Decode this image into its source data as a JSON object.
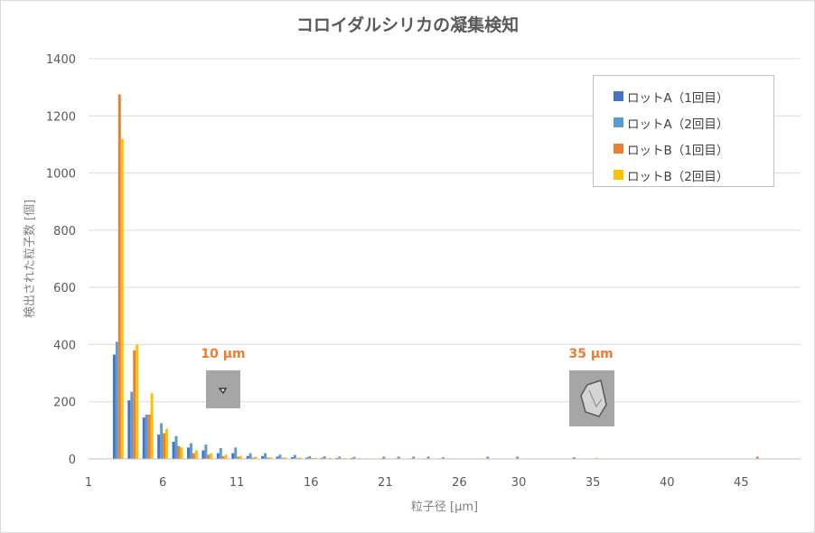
{
  "chart_data": {
    "type": "bar",
    "title": "コロイダルシリカの凝集検知",
    "xlabel": "粒子径 [µm]",
    "ylabel": "検出された粒子数 [個]",
    "xlim": [
      1,
      49
    ],
    "ylim": [
      0,
      1400
    ],
    "x_ticks": [
      1,
      6,
      11,
      16,
      21,
      26,
      30,
      35,
      40,
      45
    ],
    "y_ticks": [
      0,
      200,
      400,
      600,
      800,
      1000,
      1200,
      1400
    ],
    "grid": true,
    "legend_position": "top-right",
    "series": [
      {
        "name": "ロットA（1回目）",
        "color": "#4472c4",
        "points": [
          [
            3,
            365
          ],
          [
            4,
            205
          ],
          [
            5,
            145
          ],
          [
            6,
            85
          ],
          [
            7,
            60
          ],
          [
            8,
            40
          ],
          [
            9,
            30
          ],
          [
            10,
            20
          ],
          [
            11,
            20
          ],
          [
            12,
            10
          ],
          [
            13,
            10
          ],
          [
            14,
            8
          ],
          [
            15,
            6
          ],
          [
            16,
            5
          ],
          [
            17,
            4
          ],
          [
            18,
            3
          ],
          [
            19,
            3
          ],
          [
            20,
            2
          ],
          [
            21,
            2
          ],
          [
            22,
            2
          ],
          [
            23,
            2
          ],
          [
            24,
            2
          ],
          [
            25,
            2
          ],
          [
            34,
            5
          ]
        ]
      },
      {
        "name": "ロットA（2回目）",
        "color": "#5b9bd5",
        "points": [
          [
            3,
            410
          ],
          [
            4,
            235
          ],
          [
            5,
            155
          ],
          [
            6,
            125
          ],
          [
            7,
            80
          ],
          [
            8,
            55
          ],
          [
            9,
            50
          ],
          [
            10,
            38
          ],
          [
            11,
            40
          ],
          [
            12,
            20
          ],
          [
            13,
            20
          ],
          [
            14,
            15
          ],
          [
            15,
            14
          ],
          [
            16,
            10
          ],
          [
            17,
            9
          ],
          [
            18,
            8
          ],
          [
            19,
            7
          ],
          [
            21,
            8
          ],
          [
            22,
            8
          ],
          [
            23,
            8
          ],
          [
            24,
            8
          ],
          [
            25,
            6
          ],
          [
            28,
            8
          ],
          [
            30,
            8
          ]
        ]
      },
      {
        "name": "ロットB（1回目）",
        "color": "#ed7d31",
        "points": [
          [
            3,
            1275
          ],
          [
            4,
            380
          ],
          [
            5,
            155
          ],
          [
            6,
            90
          ],
          [
            7,
            45
          ],
          [
            8,
            20
          ],
          [
            9,
            15
          ],
          [
            10,
            10
          ],
          [
            11,
            8
          ],
          [
            12,
            5
          ],
          [
            13,
            5
          ],
          [
            14,
            4
          ],
          [
            15,
            3
          ],
          [
            16,
            3
          ],
          [
            17,
            2
          ],
          [
            18,
            2
          ],
          [
            46,
            8
          ]
        ]
      },
      {
        "name": "ロットB（2回目）",
        "color": "#ffc000",
        "points": [
          [
            3,
            1120
          ],
          [
            4,
            400
          ],
          [
            5,
            230
          ],
          [
            6,
            105
          ],
          [
            7,
            40
          ],
          [
            8,
            30
          ],
          [
            9,
            20
          ],
          [
            10,
            15
          ],
          [
            11,
            10
          ],
          [
            12,
            8
          ],
          [
            13,
            6
          ],
          [
            14,
            5
          ],
          [
            15,
            5
          ],
          [
            16,
            4
          ],
          [
            17,
            4
          ],
          [
            18,
            3
          ],
          [
            19,
            3
          ],
          [
            21,
            2
          ],
          [
            25,
            2
          ],
          [
            27,
            2
          ],
          [
            35,
            4
          ]
        ]
      }
    ],
    "annotations": [
      {
        "label": "10 µm",
        "x": 10.1,
        "y": 350,
        "image": "small round particle"
      },
      {
        "label": "35 µm",
        "x": 34.9,
        "y": 350,
        "image": "large irregular particle"
      }
    ]
  }
}
